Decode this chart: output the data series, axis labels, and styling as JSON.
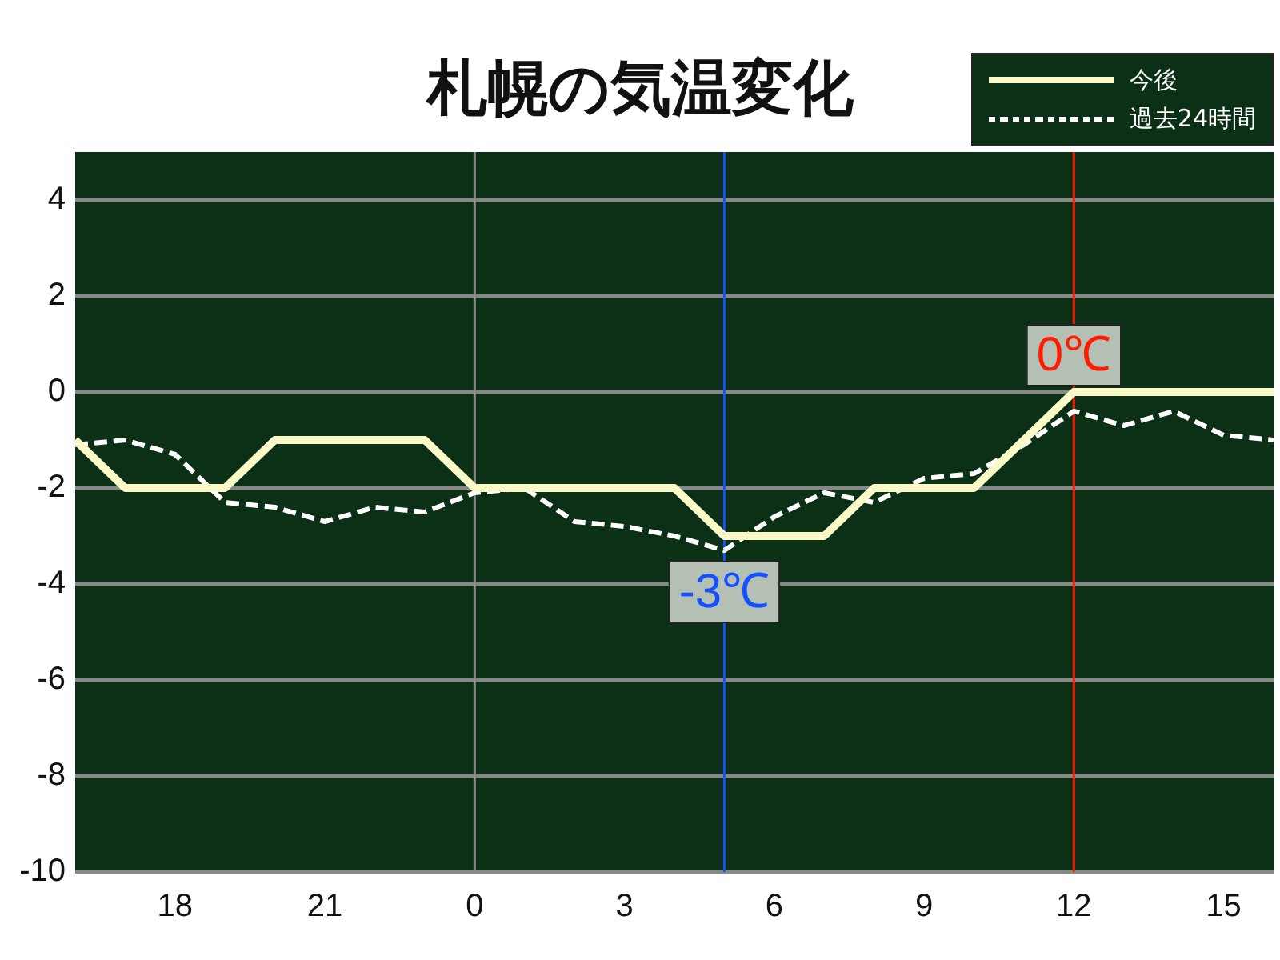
{
  "chart_data": {
    "type": "line",
    "title": "札幌の気温変化",
    "x": [
      "--01-01T16:00",
      "--01-01T17:00",
      "--01-01T18:00",
      "--01-01T19:00",
      "--01-01T20:00",
      "--01-01T21:00",
      "--01-01T22:00",
      "--01-01T23:00",
      "--01-02T00:00",
      "--01-02T01:00",
      "--01-02T02:00",
      "--01-02T03:00",
      "--01-02T04:00",
      "--01-02T05:00",
      "--01-02T06:00",
      "--01-02T07:00",
      "--01-02T08:00",
      "--01-02T09:00",
      "--01-02T10:00",
      "--01-02T11:00",
      "--01-02T12:00",
      "--01-02T13:00",
      "--01-02T14:00",
      "--01-02T15:00",
      "--01-02T16:00"
    ],
    "series": [
      {
        "name": "今後",
        "color": "#fafac8",
        "line_style": "solid",
        "values": [
          -1,
          -2,
          -2,
          -2,
          -1,
          -1,
          -1,
          -1,
          -2,
          -2,
          -2,
          -2,
          -2,
          -3,
          -3,
          -3,
          -2,
          -2,
          -2,
          -1,
          0,
          0,
          0,
          0,
          0
        ]
      },
      {
        "name": "過去24時間",
        "color": "#ffffff",
        "line_style": "dashed",
        "values": [
          -1.1,
          -1.0,
          -1.3,
          -2.3,
          -2.4,
          -2.7,
          -2.4,
          -2.5,
          -2.1,
          -2.0,
          -2.7,
          -2.8,
          -3.0,
          -3.3,
          -2.6,
          -2.1,
          -2.3,
          -1.8,
          -1.7,
          -1.1,
          -0.4,
          -0.7,
          -0.4,
          -0.9,
          -1.0
        ]
      }
    ],
    "xlim": [
      "--01-01T16:00",
      "--01-02T16:00"
    ],
    "xticks": [
      {
        "value": "--01-01T18:00",
        "label": "18"
      },
      {
        "value": "--01-01T21:00",
        "label": "21"
      },
      {
        "value": "--01-02T00:00",
        "label": "0"
      },
      {
        "value": "--01-02T03:00",
        "label": "3"
      },
      {
        "value": "--01-02T06:00",
        "label": "6"
      },
      {
        "value": "--01-02T09:00",
        "label": "9"
      },
      {
        "value": "--01-02T12:00",
        "label": "12"
      },
      {
        "value": "--01-02T15:00",
        "label": "15"
      }
    ],
    "ylim": [
      -10,
      5
    ],
    "yticks": [
      -10,
      -8,
      -6,
      -4,
      -2,
      0,
      2,
      4
    ],
    "grid": "y",
    "legend": "top right",
    "marker": "none",
    "ref_lines": [
      {
        "axis": "x",
        "value": "--01-02T00:00",
        "color": "#888888"
      },
      {
        "axis": "x",
        "value": "--01-02T05:00",
        "color": "#1450ff"
      },
      {
        "axis": "x",
        "value": "--01-02T12:00",
        "color": "#ff1a00"
      }
    ],
    "annotations": [
      {
        "text": "0℃",
        "x": "--01-02T12:00",
        "y": 0
      },
      {
        "text": "-3℃",
        "x": "--01-02T05:00",
        "y": -3
      }
    ]
  }
}
